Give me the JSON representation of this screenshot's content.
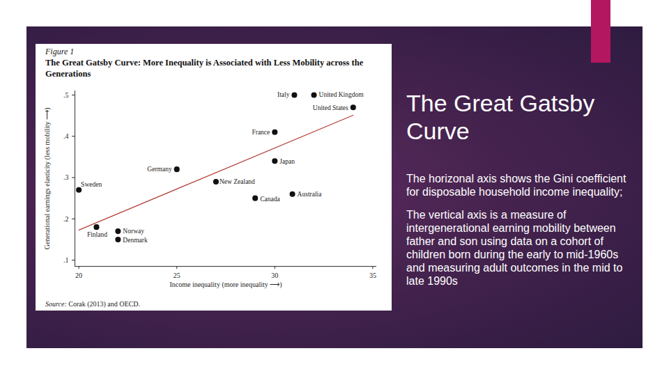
{
  "chart_data": {
    "type": "scatter",
    "figure_label": "Figure 1",
    "title": "The Great Gatsby Curve: More Inequality is Associated with Less Mobility across the Generations",
    "x_label": "Income inequality (more inequality ⟶)",
    "y_label": "Generational earnings elasticity (less mobility ⟶)",
    "source_label": "Source:",
    "source": "Corak (2013) and OECD.",
    "point_labels": [
      "Italy",
      "United Kingdom",
      "United States",
      "France",
      "Japan",
      "Germany",
      "New Zealand",
      "Canada",
      "Australia",
      "Sweden",
      "Finland",
      "Norway",
      "Denmark"
    ],
    "x": [
      31.0,
      32.0,
      34.0,
      30.0,
      30.0,
      25.0,
      27.0,
      29.0,
      30.9,
      20.0,
      20.9,
      22.0,
      22.0
    ],
    "values": [
      0.5,
      0.5,
      0.47,
      0.41,
      0.34,
      0.32,
      0.29,
      0.25,
      0.26,
      0.27,
      0.18,
      0.17,
      0.15
    ],
    "color": "#111111",
    "marker": "circle",
    "trend_line": {
      "x": [
        20,
        34
      ],
      "values": [
        0.173,
        0.451
      ],
      "color": "#b5403a",
      "line_style": "solid"
    },
    "xlim": [
      19.8,
      35.2
    ],
    "ylim": [
      0.085,
      0.51
    ],
    "xticks": [
      20,
      25,
      30,
      35
    ],
    "yticks": [
      {
        "value": 0.1,
        "label": ".1"
      },
      {
        "value": 0.2,
        "label": ".2"
      },
      {
        "value": 0.3,
        "label": ".3"
      },
      {
        "value": 0.4,
        "label": ".4"
      },
      {
        "value": 0.5,
        "label": ".5"
      }
    ],
    "grid": false
  },
  "slide": {
    "heading": "The Great Gatsby Curve",
    "paragraphs": [
      "The horizonal axis shows the Gini coefficient for disposable household income inequality;",
      "The vertical axis is a measure of intergenerational earning mobility between father and son using data on a cohort of children born during the early to mid-1960s and measuring adult outcomes in the mid to late 1990s"
    ]
  }
}
